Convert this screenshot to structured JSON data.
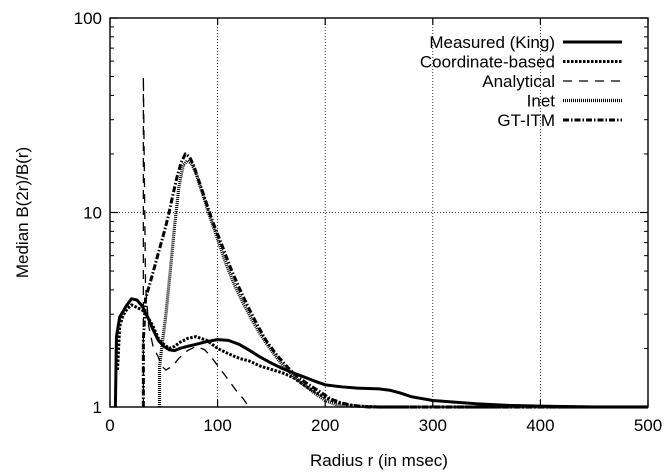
{
  "chart_data": {
    "type": "line",
    "title": "",
    "xlabel": "Radius r (in msec)",
    "ylabel": "Median B(2r)/B(r)",
    "xlim": [
      0,
      500
    ],
    "ylim": [
      1,
      100
    ],
    "yscale": "log",
    "grid": true,
    "legend_position": "top-right",
    "x_ticks": [
      0,
      100,
      200,
      300,
      400,
      500
    ],
    "y_ticks": [
      1,
      10,
      100
    ],
    "series": [
      {
        "name": "Measured (King)",
        "style": "solid",
        "points": [
          [
            5,
            1
          ],
          [
            6,
            2.3
          ],
          [
            9,
            2.9
          ],
          [
            15,
            3.3
          ],
          [
            20,
            3.6
          ],
          [
            25,
            3.55
          ],
          [
            30,
            3.3
          ],
          [
            35,
            2.9
          ],
          [
            40,
            2.5
          ],
          [
            45,
            2.2
          ],
          [
            50,
            2.05
          ],
          [
            55,
            1.97
          ],
          [
            60,
            1.95
          ],
          [
            65,
            2.0
          ],
          [
            72,
            2.05
          ],
          [
            80,
            2.1
          ],
          [
            90,
            2.17
          ],
          [
            100,
            2.22
          ],
          [
            110,
            2.2
          ],
          [
            120,
            2.1
          ],
          [
            130,
            1.95
          ],
          [
            140,
            1.8
          ],
          [
            150,
            1.68
          ],
          [
            160,
            1.58
          ],
          [
            170,
            1.5
          ],
          [
            180,
            1.43
          ],
          [
            190,
            1.36
          ],
          [
            200,
            1.3
          ],
          [
            215,
            1.27
          ],
          [
            230,
            1.25
          ],
          [
            250,
            1.24
          ],
          [
            260,
            1.22
          ],
          [
            270,
            1.18
          ],
          [
            280,
            1.13
          ],
          [
            300,
            1.08
          ],
          [
            320,
            1.06
          ],
          [
            340,
            1.04
          ],
          [
            370,
            1.02
          ],
          [
            400,
            1.01
          ],
          [
            450,
            1.0
          ],
          [
            500,
            1.0
          ]
        ]
      },
      {
        "name": "Coordinate-based",
        "style": "dotted",
        "points": [
          [
            7,
            1.55
          ],
          [
            9,
            2.6
          ],
          [
            12,
            2.95
          ],
          [
            16,
            3.2
          ],
          [
            20,
            3.35
          ],
          [
            25,
            3.25
          ],
          [
            30,
            3.15
          ],
          [
            35,
            2.9
          ],
          [
            40,
            2.6
          ],
          [
            45,
            2.25
          ],
          [
            50,
            2.1
          ],
          [
            55,
            2.0
          ],
          [
            60,
            2.05
          ],
          [
            65,
            2.15
          ],
          [
            72,
            2.25
          ],
          [
            80,
            2.3
          ],
          [
            90,
            2.2
          ],
          [
            100,
            2.0
          ],
          [
            110,
            1.88
          ],
          [
            120,
            1.78
          ],
          [
            130,
            1.72
          ],
          [
            140,
            1.62
          ],
          [
            150,
            1.56
          ],
          [
            160,
            1.5
          ],
          [
            170,
            1.42
          ],
          [
            180,
            1.3
          ],
          [
            190,
            1.2
          ],
          [
            200,
            1.12
          ],
          [
            210,
            1.06
          ],
          [
            220,
            1.03
          ],
          [
            230,
            1.01
          ],
          [
            250,
            1.0
          ],
          [
            300,
            1.0
          ],
          [
            500,
            1.0
          ]
        ]
      },
      {
        "name": "Analytical",
        "style": "dashed",
        "points": [
          [
            31,
            1
          ],
          [
            31,
            50
          ],
          [
            33,
            4.2
          ],
          [
            36,
            2.6
          ],
          [
            40,
            2.05
          ],
          [
            45,
            1.8
          ],
          [
            48,
            1.62
          ],
          [
            52,
            1.55
          ],
          [
            58,
            1.62
          ],
          [
            64,
            1.78
          ],
          [
            72,
            1.95
          ],
          [
            80,
            2.05
          ],
          [
            88,
            1.97
          ],
          [
            95,
            1.78
          ],
          [
            102,
            1.58
          ],
          [
            110,
            1.38
          ],
          [
            117,
            1.22
          ],
          [
            124,
            1.1
          ],
          [
            128,
            1.02
          ],
          [
            131,
            1.0
          ]
        ]
      },
      {
        "name": "Inet",
        "style": "double",
        "points": [
          [
            46,
            1
          ],
          [
            46,
            1.6
          ],
          [
            48,
            2.0
          ],
          [
            52,
            3.0
          ],
          [
            56,
            5.0
          ],
          [
            60,
            8.5
          ],
          [
            64,
            13.5
          ],
          [
            68,
            17.5
          ],
          [
            72,
            18.5
          ],
          [
            76,
            17.8
          ],
          [
            80,
            15.8
          ],
          [
            86,
            12.5
          ],
          [
            92,
            9.8
          ],
          [
            100,
            7.3
          ],
          [
            108,
            5.4
          ],
          [
            116,
            4.2
          ],
          [
            124,
            3.4
          ],
          [
            132,
            2.8
          ],
          [
            140,
            2.35
          ],
          [
            150,
            1.95
          ],
          [
            160,
            1.65
          ],
          [
            170,
            1.45
          ],
          [
            180,
            1.3
          ],
          [
            190,
            1.18
          ],
          [
            200,
            1.08
          ],
          [
            210,
            1.03
          ],
          [
            225,
            1.01
          ],
          [
            250,
            1.0
          ],
          [
            500,
            1.0
          ]
        ]
      },
      {
        "name": "GT-ITM",
        "style": "dashdot",
        "points": [
          [
            31,
            1
          ],
          [
            31,
            2.2
          ],
          [
            33,
            3.6
          ],
          [
            38,
            4.5
          ],
          [
            42,
            5.4
          ],
          [
            46,
            6.5
          ],
          [
            50,
            7.8
          ],
          [
            54,
            9.5
          ],
          [
            58,
            12.0
          ],
          [
            62,
            15.0
          ],
          [
            66,
            18.0
          ],
          [
            70,
            20.0
          ],
          [
            74,
            19.3
          ],
          [
            78,
            17.3
          ],
          [
            84,
            13.8
          ],
          [
            90,
            11.0
          ],
          [
            96,
            8.8
          ],
          [
            104,
            6.8
          ],
          [
            112,
            5.2
          ],
          [
            120,
            4.1
          ],
          [
            128,
            3.3
          ],
          [
            136,
            2.7
          ],
          [
            145,
            2.2
          ],
          [
            155,
            1.85
          ],
          [
            165,
            1.6
          ],
          [
            175,
            1.42
          ],
          [
            185,
            1.3
          ],
          [
            195,
            1.2
          ],
          [
            205,
            1.1
          ],
          [
            215,
            1.05
          ],
          [
            225,
            1.02
          ],
          [
            240,
            1.0
          ],
          [
            500,
            1.0
          ]
        ]
      }
    ]
  }
}
